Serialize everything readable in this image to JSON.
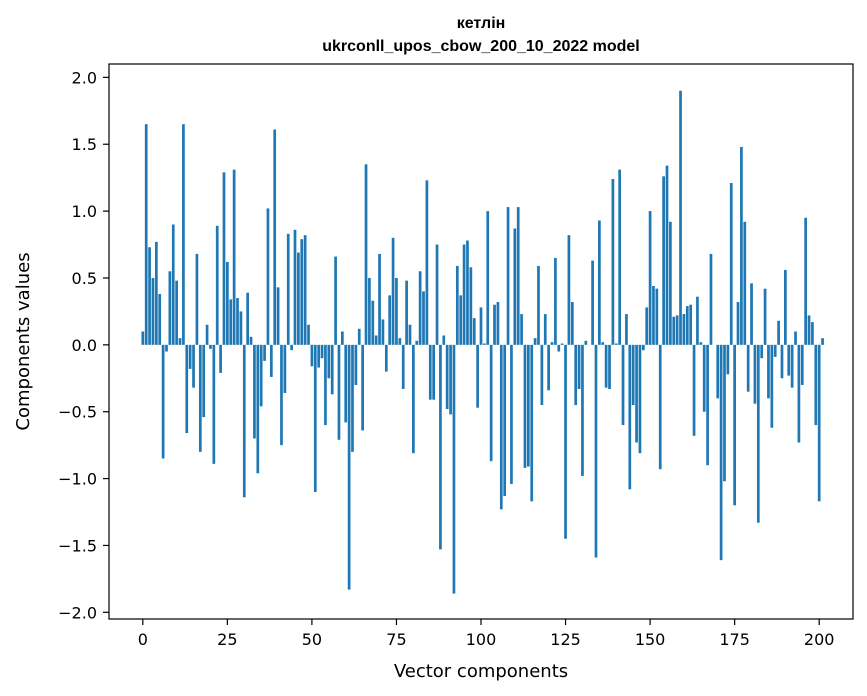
{
  "chart_data": {
    "type": "bar",
    "title": "кетлін",
    "subtitle": "ukrconll_upos_cbow_200_10_2022 model",
    "xlabel": "Vector components",
    "ylabel": "Components values",
    "xlim": [
      -10,
      210
    ],
    "ylim": [
      -2.05,
      2.1
    ],
    "xticks": [
      0,
      25,
      50,
      75,
      100,
      125,
      150,
      175,
      200
    ],
    "xtick_labels": [
      "0",
      "25",
      "50",
      "75",
      "100",
      "125",
      "150",
      "175",
      "200"
    ],
    "yticks": [
      -2.0,
      -1.5,
      -1.0,
      -0.5,
      0.0,
      0.5,
      1.0,
      1.5,
      2.0
    ],
    "ytick_labels": [
      "−2.0",
      "−1.5",
      "−1.0",
      "−0.5",
      "0.0",
      "0.5",
      "1.0",
      "1.5",
      "2.0"
    ],
    "grid": false,
    "bar_color": "#1f77b4",
    "values": [
      0.1,
      1.65,
      0.73,
      0.5,
      0.77,
      0.38,
      -0.85,
      -0.05,
      0.55,
      0.9,
      0.48,
      0.05,
      1.65,
      -0.66,
      -0.18,
      -0.32,
      0.68,
      -0.8,
      -0.54,
      0.15,
      -0.03,
      -0.89,
      0.89,
      -0.21,
      1.29,
      0.62,
      0.34,
      1.31,
      0.35,
      0.25,
      -1.14,
      0.39,
      0.06,
      -0.7,
      -0.96,
      -0.46,
      -0.12,
      1.02,
      -0.24,
      1.61,
      0.43,
      -0.75,
      -0.36,
      0.83,
      -0.04,
      0.86,
      0.69,
      0.79,
      0.82,
      0.15,
      -0.16,
      -1.1,
      -0.17,
      -0.1,
      -0.6,
      -0.25,
      -0.37,
      0.66,
      -0.71,
      0.1,
      -0.58,
      -1.83,
      -0.8,
      -0.3,
      0.12,
      -0.64,
      1.35,
      0.5,
      0.33,
      0.07,
      0.68,
      0.19,
      -0.2,
      0.37,
      0.8,
      0.5,
      0.05,
      -0.33,
      0.48,
      0.15,
      -0.81,
      0.03,
      0.55,
      0.4,
      1.23,
      -0.41,
      -0.41,
      0.75,
      -1.53,
      0.07,
      -0.48,
      -0.52,
      -1.86,
      0.59,
      0.37,
      0.75,
      0.78,
      0.58,
      0.2,
      -0.47,
      0.28,
      0.01,
      1.0,
      -0.87,
      0.3,
      0.32,
      -1.23,
      -1.13,
      1.03,
      -1.04,
      0.87,
      1.03,
      0.23,
      -0.92,
      -0.91,
      -1.17,
      0.05,
      0.59,
      -0.45,
      0.23,
      -0.34,
      0.02,
      0.65,
      -0.05,
      0.01,
      -1.45,
      0.82,
      0.32,
      -0.45,
      -0.33,
      -0.98,
      0.03,
      0.0,
      0.63,
      -1.59,
      0.93,
      0.02,
      -0.32,
      -0.33,
      1.24,
      0.01,
      1.31,
      -0.6,
      0.23,
      -1.08,
      -0.45,
      -0.73,
      -0.81,
      -0.04,
      0.28,
      1.0,
      0.44,
      0.42,
      -0.93,
      1.26,
      1.34,
      0.92,
      0.21,
      0.22,
      1.9,
      0.23,
      0.29,
      0.3,
      -0.68,
      0.36,
      0.02,
      -0.5,
      -0.9,
      0.68,
      0.0,
      -0.4,
      -1.61,
      -1.02,
      -0.22,
      1.21,
      -1.2,
      0.32,
      1.48,
      0.92,
      -0.35,
      0.46,
      -0.44,
      -1.33,
      -0.1,
      0.42,
      -0.4,
      -0.62,
      -0.09,
      0.18,
      -0.25,
      0.56,
      -0.23,
      -0.32,
      0.1,
      -0.73,
      -0.3,
      0.95,
      0.22,
      0.17,
      -0.6,
      -1.17,
      0.05
    ]
  }
}
